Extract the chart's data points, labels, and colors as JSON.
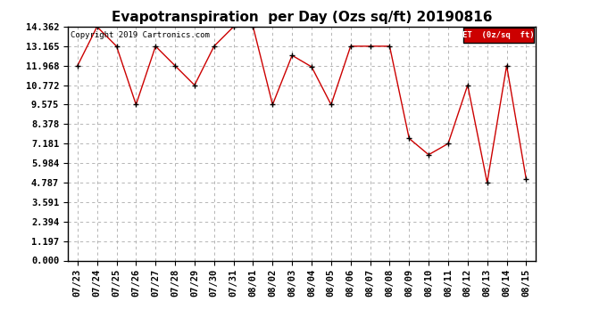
{
  "title": "Evapotranspiration  per Day (Ozs sq/ft) 20190816",
  "copyright_text": "Copyright 2019 Cartronics.com",
  "legend_label": "ET  (0z/sq  ft)",
  "x_labels": [
    "07/23",
    "07/24",
    "07/25",
    "07/26",
    "07/27",
    "07/28",
    "07/29",
    "07/30",
    "07/31",
    "08/01",
    "08/02",
    "08/03",
    "08/04",
    "08/05",
    "08/06",
    "08/07",
    "08/08",
    "08/09",
    "08/10",
    "08/11",
    "08/12",
    "08/13",
    "08/14",
    "08/15"
  ],
  "y_values": [
    11.968,
    14.362,
    13.165,
    9.575,
    13.165,
    11.968,
    10.772,
    13.165,
    14.362,
    14.362,
    9.575,
    12.6,
    11.9,
    9.575,
    13.165,
    13.165,
    13.165,
    7.5,
    6.5,
    7.181,
    10.772,
    4.787,
    11.968,
    5.0
  ],
  "y_ticks": [
    0.0,
    1.197,
    2.394,
    3.591,
    4.787,
    5.984,
    7.181,
    8.378,
    9.575,
    10.772,
    11.968,
    13.165,
    14.362
  ],
  "line_color": "#cc0000",
  "marker_color": "#000000",
  "background_color": "#ffffff",
  "grid_color": "#aaaaaa",
  "legend_bg": "#cc0000",
  "legend_text_color": "#ffffff",
  "title_fontsize": 11,
  "tick_fontsize": 7.5,
  "copyright_fontsize": 6.5,
  "fig_width": 6.9,
  "fig_height": 3.75,
  "fig_dpi": 100
}
